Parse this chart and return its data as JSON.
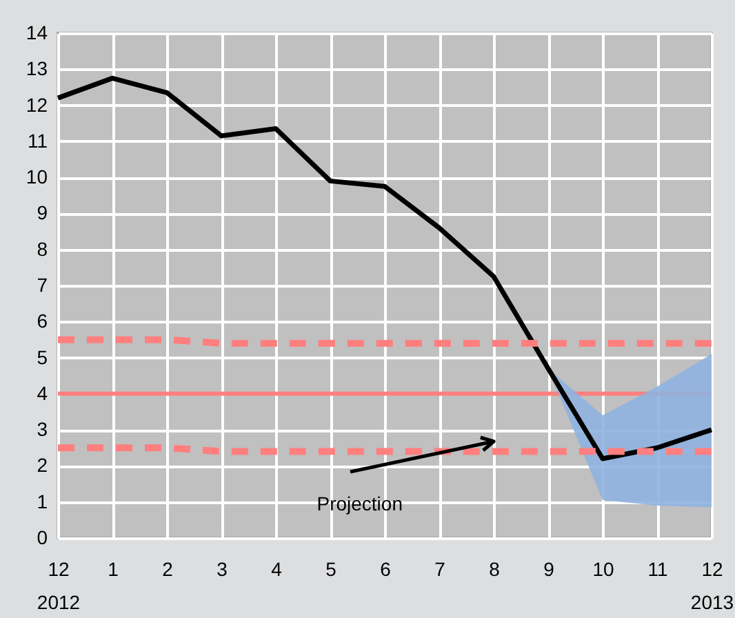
{
  "chart_data": {
    "type": "line",
    "x": [
      0,
      1,
      2,
      3,
      4,
      5,
      6,
      7,
      8,
      9,
      10,
      11,
      12
    ],
    "xlim": [
      0,
      12
    ],
    "xticks": [
      {
        "value": 0,
        "label": "12\n2012"
      },
      {
        "value": 1,
        "label": "1"
      },
      {
        "value": 2,
        "label": "2"
      },
      {
        "value": 3,
        "label": "3"
      },
      {
        "value": 4,
        "label": "4"
      },
      {
        "value": 5,
        "label": "5"
      },
      {
        "value": 6,
        "label": "6"
      },
      {
        "value": 7,
        "label": "7"
      },
      {
        "value": 8,
        "label": "8"
      },
      {
        "value": 9,
        "label": "9"
      },
      {
        "value": 10,
        "label": "10"
      },
      {
        "value": 11,
        "label": "11"
      },
      {
        "value": 12,
        "label": "12\n2013"
      }
    ],
    "ylim": [
      0,
      14
    ],
    "yticks": [
      0,
      1,
      2,
      3,
      4,
      5,
      6,
      7,
      8,
      9,
      10,
      11,
      12,
      13,
      14
    ],
    "grid": true,
    "series": [
      {
        "color": "#000000",
        "values": [
          12.2,
          12.75,
          12.35,
          11.15,
          11.35,
          9.9,
          9.75,
          8.6,
          7.25,
          4.7,
          2.2,
          2.5,
          3.0
        ],
        "lower": [
          null,
          null,
          null,
          null,
          null,
          null,
          null,
          null,
          null,
          4.7,
          1.05,
          0.9,
          0.85
        ],
        "upper": [
          null,
          null,
          null,
          null,
          null,
          null,
          null,
          null,
          null,
          4.7,
          3.4,
          4.2,
          5.1
        ]
      },
      {
        "color": "#ff7f7f",
        "line_style": "dashed",
        "values": [
          5.5,
          5.5,
          5.5,
          5.4,
          5.4,
          5.4,
          5.4,
          5.4,
          5.4,
          5.4,
          5.4,
          5.4,
          5.4
        ]
      },
      {
        "color": "#ff7f7f",
        "line_style": "dashed",
        "values": [
          2.5,
          2.5,
          2.5,
          2.4,
          2.4,
          2.4,
          2.4,
          2.4,
          2.4,
          2.4,
          2.4,
          2.4,
          2.4
        ]
      }
    ],
    "ref_lines": [
      {
        "axis": "y",
        "value": 4,
        "color": "#ff7f7f"
      }
    ],
    "annotations": [
      "Projection"
    ]
  }
}
